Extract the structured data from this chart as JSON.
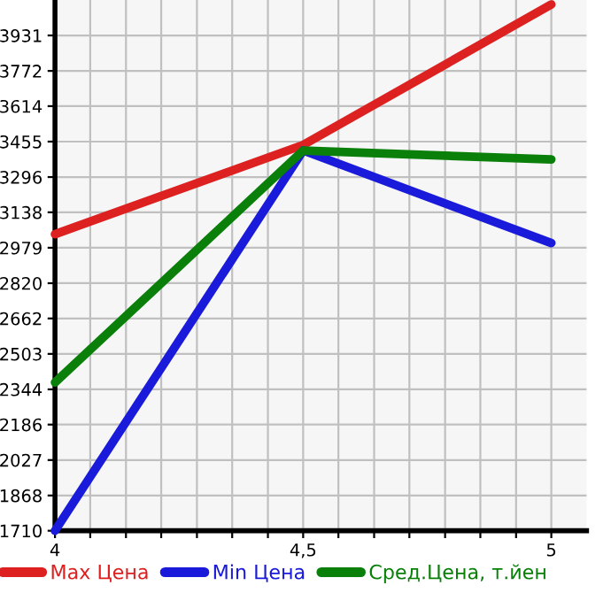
{
  "chart_data": {
    "type": "line",
    "x": [
      4,
      4.5,
      5
    ],
    "series": [
      {
        "name": "Max Цена",
        "color": "#dd2020",
        "values": [
          3040,
          3440,
          4070
        ]
      },
      {
        "name": "Min Цена",
        "color": "#1a1adb",
        "values": [
          1710,
          3415,
          3000
        ]
      },
      {
        "name": "Сред.Цена, т.йен",
        "color": "#0a800a",
        "values": [
          2375,
          3415,
          3375
        ]
      }
    ],
    "xlim": [
      4,
      5.071
    ],
    "ylim": [
      1710,
      4090
    ],
    "xticks": [
      4,
      {
        "value": 4.071,
        "label": null
      },
      {
        "value": 4.143,
        "label": null
      },
      {
        "value": 4.214,
        "label": null
      },
      {
        "value": 4.286,
        "label": null
      },
      {
        "value": 4.357,
        "label": null
      },
      {
        "value": 4.429,
        "label": null
      },
      {
        "value": 4.5,
        "label": "4,5"
      },
      {
        "value": 4.571,
        "label": null
      },
      {
        "value": 4.643,
        "label": null
      },
      {
        "value": 4.714,
        "label": null
      },
      {
        "value": 4.786,
        "label": null
      },
      {
        "value": 4.857,
        "label": null
      },
      {
        "value": 4.929,
        "label": null
      },
      5
    ],
    "yticks": [
      1710,
      1868,
      2027,
      2186,
      2344,
      2503,
      2662,
      2820,
      2979,
      3138,
      3296,
      3455,
      3614,
      3772,
      3931
    ],
    "grid": true,
    "legend": "bottom",
    "marker": "none",
    "line_style": "solid"
  }
}
